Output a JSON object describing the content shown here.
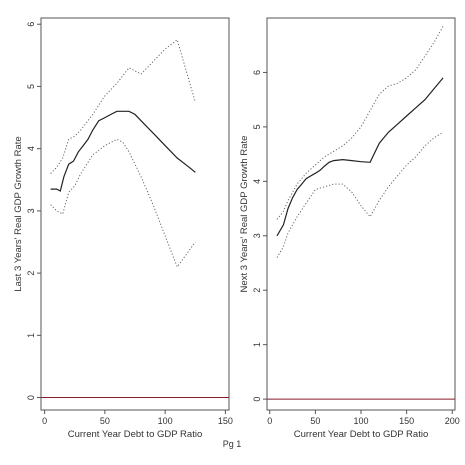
{
  "page": {
    "footer_label": "Pg 1"
  },
  "chart_data": [
    {
      "type": "line",
      "title": "",
      "xlabel": "Current Year Debt to GDP Ratio",
      "ylabel": "Last 3 Years' Real GDP Growth Rate",
      "xlim": [
        -3,
        153
      ],
      "ylim": [
        -0.2,
        6.1
      ],
      "xticks": [
        0,
        50,
        100,
        150
      ],
      "yticks": [
        0,
        1,
        2,
        3,
        4,
        5,
        6
      ],
      "grid": false,
      "reference_line": {
        "y": 0,
        "color": "#8b1a2b"
      },
      "series": [
        {
          "style": "solid",
          "x": [
            5,
            10,
            13,
            16,
            20,
            24,
            28,
            32,
            36,
            40,
            45,
            50,
            55,
            60,
            65,
            70,
            75,
            80,
            90,
            100,
            110,
            120,
            125
          ],
          "y": [
            3.35,
            3.35,
            3.32,
            3.55,
            3.75,
            3.8,
            3.95,
            4.05,
            4.15,
            4.3,
            4.45,
            4.5,
            4.55,
            4.6,
            4.6,
            4.6,
            4.55,
            4.45,
            4.25,
            4.05,
            3.85,
            3.7,
            3.62
          ]
        },
        {
          "style": "dotted",
          "x": [
            5,
            10,
            15,
            20,
            25,
            30,
            40,
            50,
            60,
            70,
            80,
            90,
            100,
            110,
            125
          ],
          "y": [
            3.6,
            3.7,
            3.85,
            4.15,
            4.2,
            4.3,
            4.55,
            4.85,
            5.05,
            5.3,
            5.2,
            5.4,
            5.6,
            5.75,
            4.75
          ]
        },
        {
          "style": "dotted",
          "x": [
            5,
            10,
            15,
            20,
            25,
            30,
            40,
            50,
            60,
            65,
            70,
            80,
            90,
            100,
            110,
            125
          ],
          "y": [
            3.1,
            3.0,
            2.95,
            3.3,
            3.4,
            3.6,
            3.9,
            4.05,
            4.15,
            4.1,
            3.95,
            3.55,
            3.1,
            2.6,
            2.1,
            2.5
          ]
        }
      ]
    },
    {
      "type": "line",
      "title": "",
      "xlabel": "Current Year Debt to GDP Ratio",
      "ylabel": "Next 3 Years' Real GDP Growth Rate",
      "xlim": [
        -3,
        203
      ],
      "ylim": [
        -0.2,
        7.0
      ],
      "xticks": [
        0,
        50,
        100,
        150,
        200
      ],
      "yticks": [
        0,
        1,
        2,
        3,
        4,
        5,
        6
      ],
      "grid": false,
      "reference_line": {
        "y": 0,
        "color": "#8b1a2b"
      },
      "series": [
        {
          "style": "solid",
          "x": [
            8,
            15,
            20,
            25,
            30,
            35,
            40,
            45,
            50,
            55,
            60,
            65,
            70,
            80,
            90,
            100,
            110,
            120,
            130,
            140,
            150,
            160,
            170,
            180,
            190
          ],
          "y": [
            3.0,
            3.2,
            3.5,
            3.7,
            3.85,
            3.95,
            4.05,
            4.1,
            4.15,
            4.2,
            4.28,
            4.35,
            4.38,
            4.4,
            4.38,
            4.36,
            4.35,
            4.7,
            4.9,
            5.05,
            5.2,
            5.35,
            5.5,
            5.7,
            5.9
          ]
        },
        {
          "style": "dotted",
          "x": [
            8,
            15,
            20,
            30,
            40,
            50,
            60,
            70,
            80,
            90,
            100,
            110,
            120,
            130,
            140,
            150,
            160,
            170,
            180,
            190
          ],
          "y": [
            3.3,
            3.45,
            3.65,
            3.95,
            4.15,
            4.3,
            4.45,
            4.55,
            4.65,
            4.8,
            5.0,
            5.3,
            5.6,
            5.75,
            5.8,
            5.9,
            6.05,
            6.3,
            6.55,
            6.85
          ]
        },
        {
          "style": "dotted",
          "x": [
            8,
            15,
            20,
            30,
            40,
            50,
            60,
            70,
            80,
            90,
            100,
            110,
            120,
            130,
            140,
            150,
            160,
            170,
            180,
            190
          ],
          "y": [
            2.6,
            2.8,
            3.05,
            3.35,
            3.6,
            3.85,
            3.9,
            3.95,
            3.95,
            3.8,
            3.55,
            3.35,
            3.65,
            3.9,
            4.1,
            4.3,
            4.45,
            4.65,
            4.8,
            4.9
          ]
        }
      ]
    }
  ]
}
